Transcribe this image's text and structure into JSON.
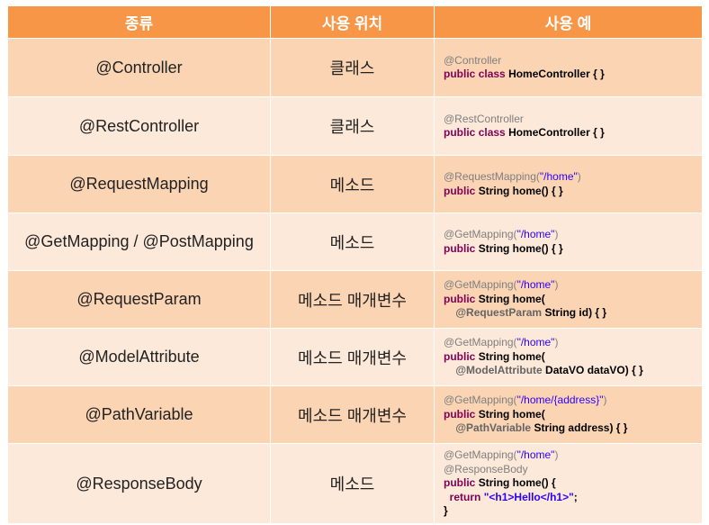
{
  "headers": {
    "type": "종류",
    "location": "사용 위치",
    "example": "사용 예"
  },
  "rows": [
    {
      "name": "@Controller",
      "location": "클래스",
      "example": {
        "l1_ann": "@Controller",
        "l2_kw1": "public",
        "l2_kw2": "class",
        "l2_rest": "HomeController { }"
      }
    },
    {
      "name": "@RestController",
      "location": "클래스",
      "example": {
        "l1_ann": "@RestController",
        "l2_kw1": "public",
        "l2_kw2": "class",
        "l2_rest": "HomeController { }"
      }
    },
    {
      "name": "@RequestMapping",
      "location": "메소드",
      "example": {
        "l1_ann": "@RequestMapping(",
        "l1_str": "\"/home\"",
        "l1_end": ")",
        "l2_kw1": "public",
        "l2_rest": "String home() { }"
      }
    },
    {
      "name": "@GetMapping / @PostMapping",
      "location": "메소드",
      "example": {
        "l1_ann": "@GetMapping(",
        "l1_str": "\"/home\"",
        "l1_end": ")",
        "l2_kw1": "public",
        "l2_rest": "String home() { }"
      }
    },
    {
      "name": "@RequestParam",
      "location": "메소드 매개변수",
      "example": {
        "l1_ann": "@GetMapping(",
        "l1_str": "\"/home\"",
        "l1_end": ")",
        "l2_kw1": "public",
        "l2_rest": "String home(",
        "l3_pa": "@RequestParam",
        "l3_rest": "String id) { }"
      }
    },
    {
      "name": "@ModelAttribute",
      "location": "메소드 매개변수",
      "example": {
        "l1_ann": "@GetMapping(",
        "l1_str": "\"/home\"",
        "l1_end": ")",
        "l2_kw1": "public",
        "l2_rest": "String home(",
        "l3_pa": "@ModelAttribute",
        "l3_rest": "DataVO dataVO) { }"
      }
    },
    {
      "name": "@PathVariable",
      "location": "메소드 매개변수",
      "example": {
        "l1_ann": "@GetMapping(",
        "l1_str": "\"/home/{address}\"",
        "l1_end": ")",
        "l2_kw1": "public",
        "l2_rest": "String home(",
        "l3_pa": "@PathVariable",
        "l3_rest": "String address) { }"
      }
    },
    {
      "name": "@ResponseBody",
      "location": "메소드",
      "example": {
        "l1_ann": "@GetMapping(",
        "l1_str": "\"/home\"",
        "l1_end": ")",
        "l2_ann": "@ResponseBody",
        "l3_kw1": "public",
        "l3_rest": "String home() {",
        "l4_kw": "return",
        "l4_str": "\"<h1>Hello</h1>\"",
        "l4_end": ";",
        "l5": "}"
      }
    }
  ]
}
